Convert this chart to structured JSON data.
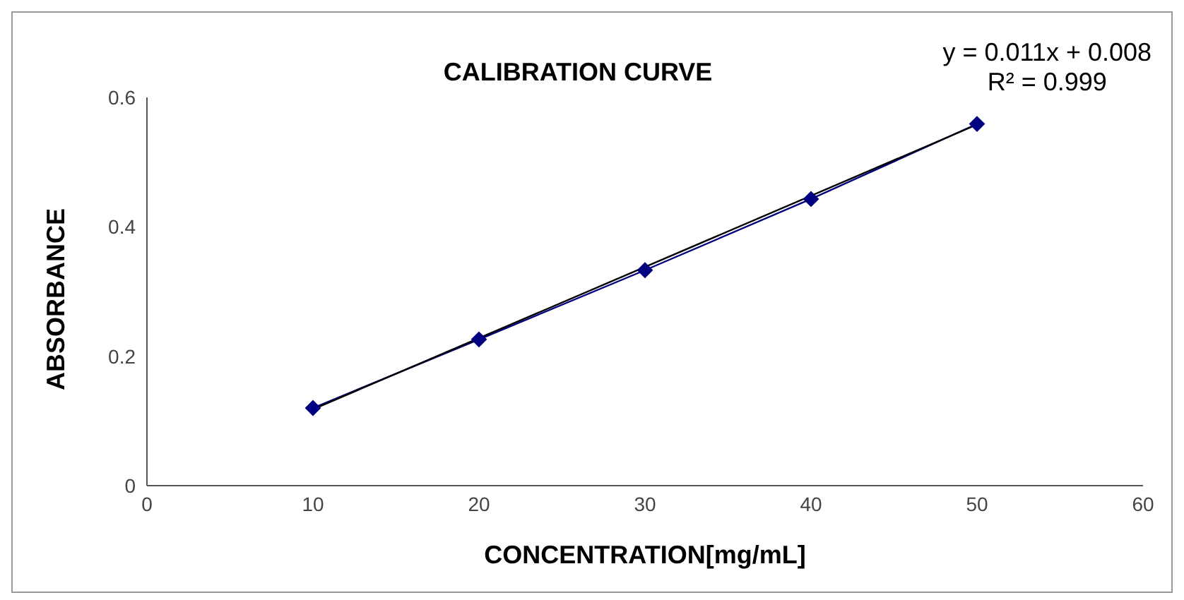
{
  "chart_data": {
    "type": "line",
    "title": "CALIBRATION CURVE",
    "xlabel": "CONCENTRATION[mg/mL]",
    "ylabel": "ABSORBANCE",
    "x": [
      10,
      20,
      30,
      40,
      50
    ],
    "series": [
      {
        "color": "#000080",
        "values": [
          0.12,
          0.226,
          0.333,
          0.443,
          0.559
        ],
        "marker": "diamond"
      },
      {
        "type": "line",
        "color": "#000000",
        "x": [
          10,
          50
        ],
        "values": [
          0.118,
          0.558
        ],
        "marker": "none"
      }
    ],
    "xlim": [
      0,
      60
    ],
    "xticks": [
      0,
      10,
      20,
      30,
      40,
      50,
      60
    ],
    "ylim": [
      0,
      0.6
    ],
    "yticks": [
      0,
      0.2,
      0.4,
      0.6
    ],
    "annotations": [
      "y = 0.011x + 0.008",
      "R² = 0.999"
    ]
  }
}
